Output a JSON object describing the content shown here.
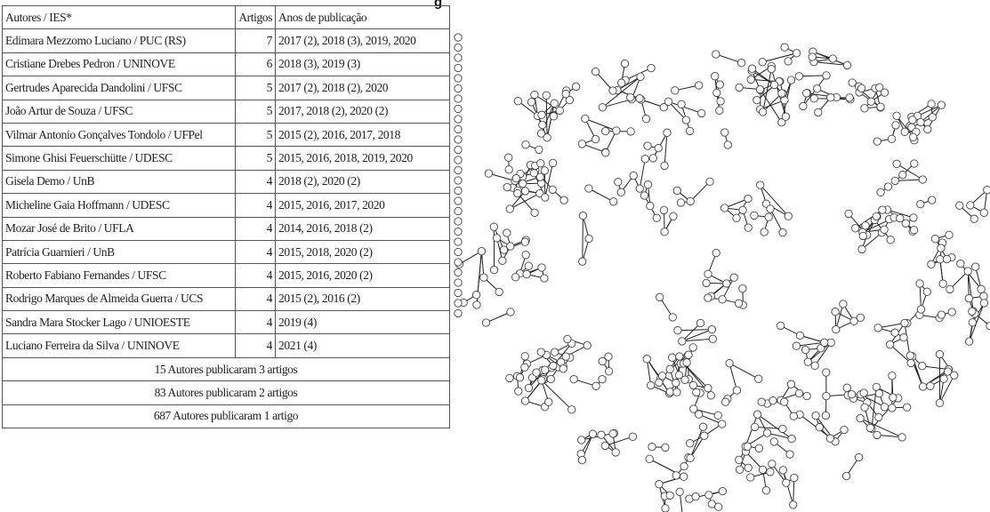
{
  "heading_fragment": "g",
  "table": {
    "headers": [
      "Autores / IES*",
      "Artigos",
      "Anos de publicação"
    ],
    "rows": [
      {
        "author": "Edimara Mezzomo Luciano / PUC (RS)",
        "count": "7",
        "years": "2017 (2), 2018 (3), 2019, 2020"
      },
      {
        "author": "Cristiane Drebes Pedron / UNINOVE",
        "count": "6",
        "years": "2018 (3), 2019 (3)"
      },
      {
        "author": "Gertrudes Aparecida Dandolini / UFSC",
        "count": "5",
        "years": "2017 (2), 2018 (2), 2020"
      },
      {
        "author": "João Artur de Souza / UFSC",
        "count": "5",
        "years": "2017, 2018 (2), 2020 (2)"
      },
      {
        "author": "Vilmar Antonio Gonçalves Tondolo / UFPel",
        "count": "5",
        "years": "2015 (2), 2016, 2017, 2018"
      },
      {
        "author": "Simone Ghisi Feuerschütte / UDESC",
        "count": "5",
        "years": "2015, 2016, 2018, 2019, 2020"
      },
      {
        "author": "Gisela Demo / UnB",
        "count": "4",
        "years": "2018 (2), 2020 (2)"
      },
      {
        "author": "Micheline Gaia Hoffmann / UDESC",
        "count": "4",
        "years": "2015, 2016, 2017, 2020"
      },
      {
        "author": "Mozar José de Brito / UFLA",
        "count": "4",
        "years": "2014, 2016, 2018 (2)"
      },
      {
        "author": "Patrícia Guarnieri / UnB",
        "count": "4",
        "years": "2015, 2018, 2020 (2)"
      },
      {
        "author": "Roberto Fabiano Fernandes / UFSC",
        "count": "4",
        "years": "2015, 2016, 2020 (2)"
      },
      {
        "author": "Rodrigo Marques de Almeida Guerra / UCS",
        "count": "4",
        "years": "2015 (2), 2016 (2)"
      },
      {
        "author": "Sandra Mara Stocker Lago / UNIOESTE",
        "count": "4",
        "years": "2019 (4)"
      },
      {
        "author": "Luciano Ferreira da Silva / UNINOVE",
        "count": "4",
        "years": "2021 (4)"
      }
    ],
    "summary": [
      "15 Autores publicaram 3 artigos",
      "83 Autores publicaram 2 artigos",
      "687 Autores publicaram 1 artigo"
    ]
  },
  "network": {
    "node_stroke": "#444444",
    "edge_stroke": "#222222"
  }
}
